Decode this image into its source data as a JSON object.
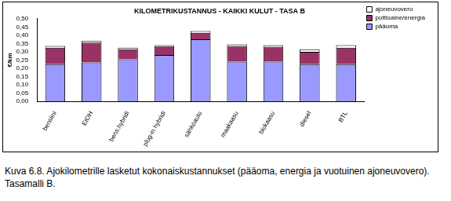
{
  "chart_data": {
    "type": "bar",
    "title": "KILOMETRIKUSTANNUS - KAIKKI KULUT - TASA B",
    "y_label": "€/km",
    "caption": "Kuva 6.8. Ajokilometrille lasketut kokonaiskustannukset (pääoma, energia ja vuotuinen ajoneuvovero). Tasamalli B.",
    "categories": [
      "bensiini",
      "EtOH",
      "bens.hybridi",
      "plug-in hybridi",
      "sähköauto",
      "maakaasu",
      "biokaasu",
      "diesel",
      "BTL"
    ],
    "series": [
      {
        "name": "pääoma",
        "color": "#9999ff",
        "values": [
          0.225,
          0.235,
          0.255,
          0.28,
          0.375,
          0.24,
          0.24,
          0.225,
          0.225
        ]
      },
      {
        "name": "polttoaine/energia",
        "color": "#993366",
        "values": [
          0.1,
          0.12,
          0.06,
          0.055,
          0.04,
          0.095,
          0.09,
          0.075,
          0.1
        ]
      },
      {
        "name": "ajoneuvovero",
        "color": "#ffffff",
        "values": [
          0.01,
          0.01,
          0.01,
          0.005,
          0.01,
          0.01,
          0.01,
          0.015,
          0.015
        ]
      }
    ],
    "stacked": true,
    "ylim": [
      0,
      0.5
    ],
    "yticks": [
      {
        "value": 0,
        "label": "0,00"
      },
      {
        "value": 0.05,
        "label": "0,05"
      },
      {
        "value": 0.1,
        "label": "0,10"
      },
      {
        "value": 0.15,
        "label": "0,15"
      },
      {
        "value": 0.2,
        "label": "0,20"
      },
      {
        "value": 0.25,
        "label": "0,25"
      },
      {
        "value": 0.3,
        "label": "0,30"
      },
      {
        "value": 0.35,
        "label": "0,35"
      },
      {
        "value": 0.4,
        "label": "0,40"
      },
      {
        "value": 0.45,
        "label": "0,45"
      },
      {
        "value": 0.5,
        "label": "0,50"
      }
    ],
    "grid": false,
    "legend": "upper right"
  }
}
